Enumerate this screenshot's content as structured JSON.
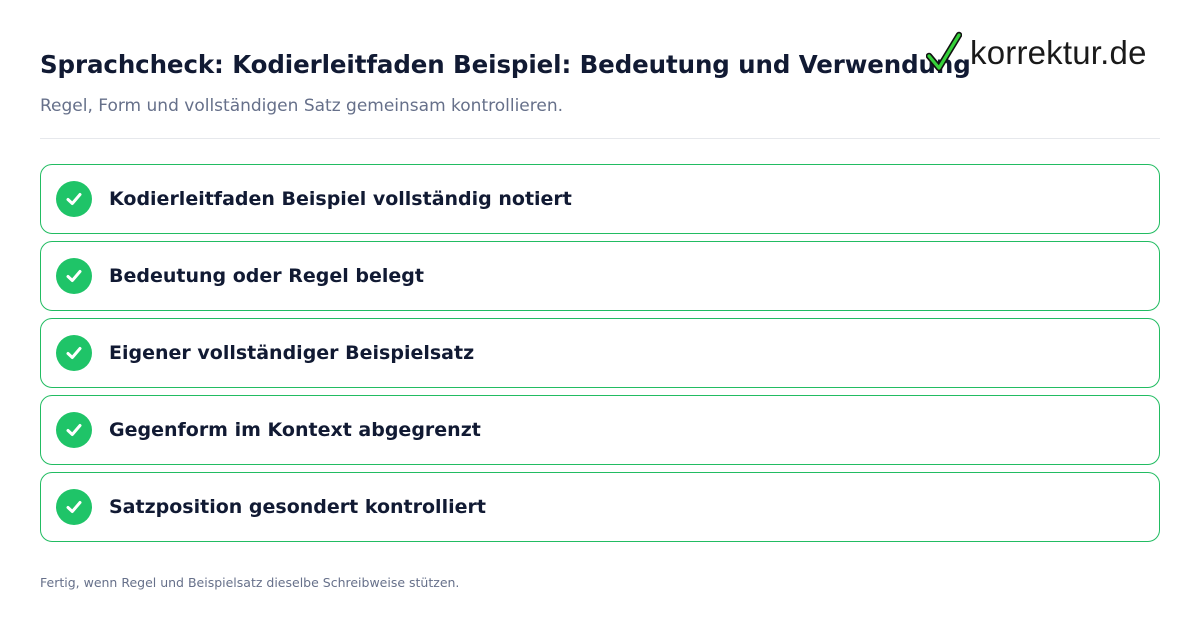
{
  "header": {
    "title": "Sprachcheck: Kodierleitfaden Beispiel: Bedeutung und Verwendung",
    "subtitle": "Regel, Form und vollständigen Satz gemeinsam kontrollieren."
  },
  "logo": {
    "text": "korrektur.de",
    "icon": "checkmark-icon",
    "accent_color": "#2ecc2e"
  },
  "checklist": {
    "items": [
      {
        "label": "Kodierleitfaden Beispiel vollständig notiert",
        "checked": true
      },
      {
        "label": "Bedeutung oder Regel belegt",
        "checked": true
      },
      {
        "label": "Eigener vollständiger Beispielsatz",
        "checked": true
      },
      {
        "label": "Gegenform im Kontext abgegrenzt",
        "checked": true
      },
      {
        "label": "Satzposition gesondert kontrolliert",
        "checked": true
      }
    ],
    "check_color": "#1fc468",
    "border_color": "#22bc62"
  },
  "footer": {
    "note": "Fertig, wenn Regel und Beispielsatz dieselbe Schreibweise stützen."
  }
}
